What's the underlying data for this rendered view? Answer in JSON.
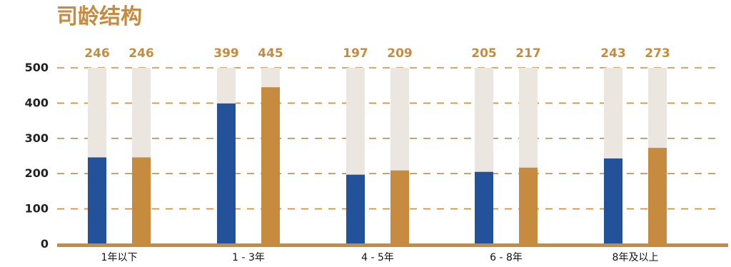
{
  "chart_data": {
    "type": "bar",
    "title": "司龄结构",
    "categories": [
      "1年以下",
      "1 - 3年",
      "4 - 5年",
      "6 - 8年",
      "8年及以上"
    ],
    "series": [
      {
        "values": [
          246,
          399,
          197,
          205,
          243
        ],
        "color": "#23529B"
      },
      {
        "values": [
          246,
          445,
          209,
          217,
          273
        ],
        "color": "#C68B3E"
      }
    ],
    "background_max": 500,
    "ylim": [
      0,
      500
    ],
    "yticks": [
      "0",
      "100",
      "200",
      "300",
      "400",
      "500"
    ],
    "grid": "dashed",
    "colors": {
      "title": "#C68B3E",
      "grid": "#C68B3E",
      "background_bar": "#EBE6E0",
      "axis": "#C68B3E"
    }
  }
}
